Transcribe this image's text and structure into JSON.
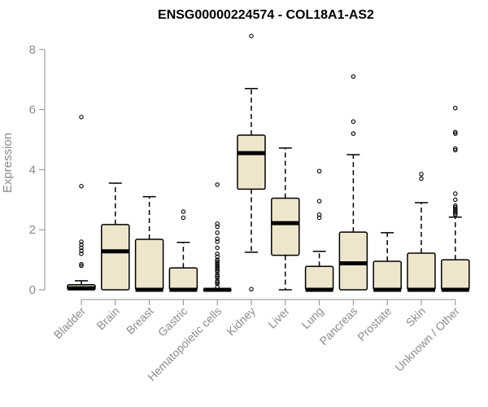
{
  "chart_data": {
    "type": "boxplot",
    "title": "ENSG00000224574 - COL18A1-AS2",
    "xlabel": "",
    "ylabel": "Expression",
    "ylim": [
      0,
      8
    ],
    "yticks": [
      0,
      2,
      4,
      6,
      8
    ],
    "box_fill": "#ede6cd",
    "categories": [
      "Bladder",
      "Brain",
      "Breast",
      "Gastric",
      "Hematopoietic cells",
      "Kidney",
      "Liver",
      "Lung",
      "Pancreas",
      "Prostate",
      "Skin",
      "Unknown / Other"
    ],
    "boxes": [
      {
        "q1": 0,
        "median": 0.05,
        "q3": 0.17,
        "whisker_low": 0,
        "whisker_high": 0.3,
        "outliers": [
          5.75,
          3.45,
          1.6,
          1.5,
          1.4,
          1.3,
          1.2,
          0.85,
          0.8
        ]
      },
      {
        "q1": 0,
        "median": 1.28,
        "q3": 2.17,
        "whisker_low": 0,
        "whisker_high": 3.55,
        "outliers": []
      },
      {
        "q1": 0,
        "median": 0,
        "q3": 1.68,
        "whisker_low": 0,
        "whisker_high": 3.1,
        "outliers": []
      },
      {
        "q1": 0,
        "median": 0,
        "q3": 0.73,
        "whisker_low": 0,
        "whisker_high": 1.58,
        "outliers": [
          2.6,
          2.4
        ]
      },
      {
        "q1": 0,
        "median": 0,
        "q3": 0,
        "whisker_low": 0,
        "whisker_high": 0,
        "outliers": [
          3.5,
          2.2,
          2.1,
          1.9,
          1.7,
          1.6,
          1.4,
          1.2,
          1.1,
          1.0,
          0.95,
          0.9,
          0.85,
          0.8,
          0.75,
          0.7,
          0.65,
          0.6,
          0.5,
          0.45,
          0.4,
          0.3,
          0.25,
          0.2,
          0.1
        ]
      },
      {
        "q1": 3.35,
        "median": 4.55,
        "q3": 5.15,
        "whisker_low": 1.25,
        "whisker_high": 6.7,
        "outliers": [
          8.45,
          0.02
        ]
      },
      {
        "q1": 1.15,
        "median": 2.22,
        "q3": 3.05,
        "whisker_low": 0,
        "whisker_high": 4.72,
        "outliers": []
      },
      {
        "q1": 0,
        "median": 0,
        "q3": 0.78,
        "whisker_low": 0,
        "whisker_high": 1.28,
        "outliers": [
          3.95,
          2.95,
          2.5,
          2.4
        ]
      },
      {
        "q1": 0,
        "median": 0.88,
        "q3": 1.92,
        "whisker_low": 0,
        "whisker_high": 4.5,
        "outliers": [
          7.1,
          5.6,
          5.2
        ]
      },
      {
        "q1": 0,
        "median": 0,
        "q3": 0.95,
        "whisker_low": 0,
        "whisker_high": 1.9,
        "outliers": []
      },
      {
        "q1": 0,
        "median": 0,
        "q3": 1.22,
        "whisker_low": 0,
        "whisker_high": 2.9,
        "outliers": [
          3.85,
          3.7
        ]
      },
      {
        "q1": 0,
        "median": 0,
        "q3": 1.0,
        "whisker_low": 0,
        "whisker_high": 2.42,
        "outliers": [
          6.05,
          5.25,
          5.2,
          4.7,
          4.65,
          3.2,
          3.0,
          2.8,
          2.75,
          2.7,
          2.65,
          2.6,
          2.55,
          2.5
        ]
      }
    ]
  }
}
